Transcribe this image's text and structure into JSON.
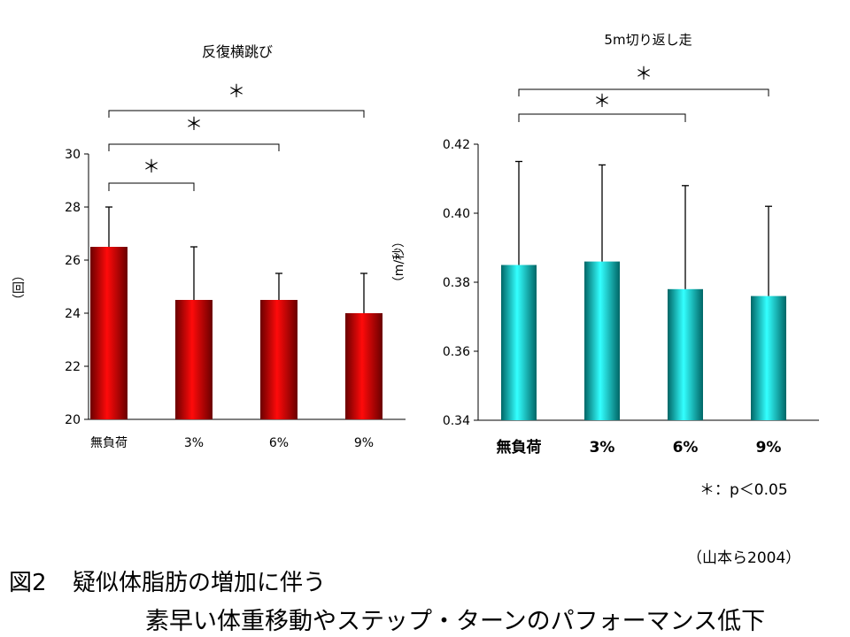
{
  "chart_data": [
    {
      "type": "bar",
      "title": "反復横跳び",
      "ylabel": "（回）",
      "xlabel": "",
      "categories": [
        "無負荷",
        "3%",
        "6%",
        "9%"
      ],
      "values": [
        26.5,
        24.5,
        24.5,
        24.0
      ],
      "error_plus": [
        1.5,
        2.0,
        1.0,
        1.5
      ],
      "ylim": [
        20,
        30
      ],
      "yticks": [
        20,
        22,
        24,
        26,
        28,
        30
      ],
      "ytick_labels": [
        "20",
        "22",
        "24",
        "26",
        "28",
        "30"
      ],
      "bar_color": "#dd0000",
      "significance": [
        {
          "from": "無負荷",
          "to": "3%",
          "label": "＊"
        },
        {
          "from": "無負荷",
          "to": "6%",
          "label": "＊"
        },
        {
          "from": "無負荷",
          "to": "9%",
          "label": "＊"
        }
      ]
    },
    {
      "type": "bar",
      "title": "5m切り返し走",
      "ylabel": "（m/秒）",
      "xlabel": "",
      "categories": [
        "無負荷",
        "3%",
        "6%",
        "9%"
      ],
      "values": [
        0.385,
        0.386,
        0.378,
        0.376
      ],
      "error_plus": [
        0.03,
        0.028,
        0.03,
        0.026
      ],
      "ylim": [
        0.34,
        0.42
      ],
      "yticks": [
        0.34,
        0.36,
        0.38,
        0.4,
        0.42
      ],
      "ytick_labels": [
        "0.34",
        "0.36",
        "0.38",
        "0.40",
        "0.42"
      ],
      "bar_color": "#00cccc",
      "significance": [
        {
          "from": "無負荷",
          "to": "6%",
          "label": "＊"
        },
        {
          "from": "無負荷",
          "to": "9%",
          "label": "＊"
        }
      ]
    }
  ],
  "legend_note": "＊：p＜0.05",
  "citation": "（山本ら2004）",
  "figure_number": "図2",
  "caption_line1": "疑似体脂肪の増加に伴う",
  "caption_line2": "素早い体重移動やステップ・ターンのパフォーマンス低下"
}
